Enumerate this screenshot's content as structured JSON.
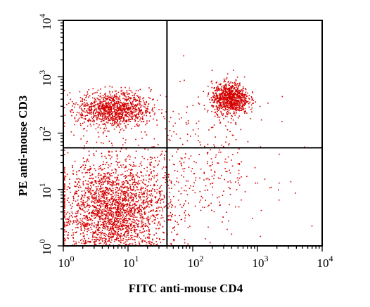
{
  "chart_data": {
    "type": "scatter",
    "title": "",
    "xlabel": "FITC anti-mouse CD4",
    "ylabel": "PE anti-mouse CD3",
    "x_scale": "log",
    "y_scale": "log",
    "xlim": [
      1,
      10000
    ],
    "ylim": [
      1,
      10000
    ],
    "x_ticks": [
      {
        "base": "10",
        "exp": "0",
        "value": 1
      },
      {
        "base": "10",
        "exp": "1",
        "value": 10
      },
      {
        "base": "10",
        "exp": "2",
        "value": 100
      },
      {
        "base": "10",
        "exp": "3",
        "value": 1000
      },
      {
        "base": "10",
        "exp": "4",
        "value": 10000
      }
    ],
    "y_ticks": [
      {
        "base": "10",
        "exp": "0",
        "value": 1
      },
      {
        "base": "10",
        "exp": "1",
        "value": 10
      },
      {
        "base": "10",
        "exp": "2",
        "value": 100
      },
      {
        "base": "10",
        "exp": "3",
        "value": 1000
      },
      {
        "base": "10",
        "exp": "4",
        "value": 10000
      }
    ],
    "quadrant_gates": {
      "x": 40,
      "y": 55
    },
    "point_color": "#d40000",
    "populations": [
      {
        "x_center": 6,
        "y_center": 4,
        "x_spread_decades": 0.42,
        "y_spread_decades": 0.48,
        "count": 2600
      },
      {
        "x_center": 6,
        "y_center": 270,
        "x_spread_decades": 0.28,
        "y_spread_decades": 0.16,
        "count": 1100
      },
      {
        "x_center": 370,
        "y_center": 420,
        "x_spread_decades": 0.14,
        "y_spread_decades": 0.14,
        "count": 900
      },
      {
        "x_center": 120,
        "y_center": 25,
        "x_spread_decades": 0.55,
        "y_spread_decades": 0.6,
        "count": 350
      }
    ],
    "grid": false,
    "legend": "none"
  }
}
